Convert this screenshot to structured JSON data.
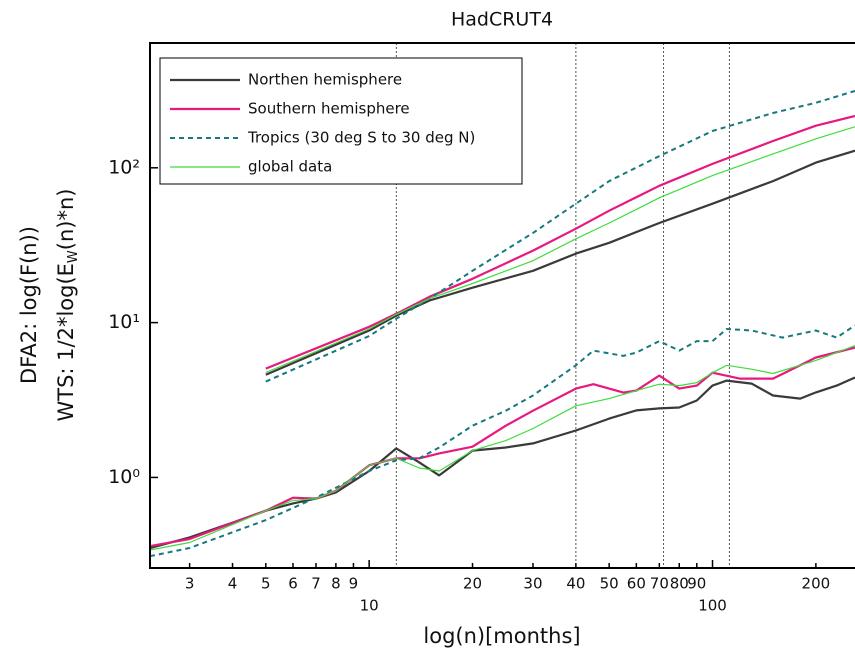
{
  "chart_data": {
    "type": "line",
    "title": "HadCRUT4",
    "xlabel": "log(n)[months]",
    "ylabel": [
      "DFA2: log(F(n))",
      "WTS: 1/2*log(E",
      "W",
      "(n)*n)"
    ],
    "log_x": true,
    "log_y": true,
    "xlim": [
      2.3,
      260
    ],
    "ylim": [
      0.26,
      640
    ],
    "xticks": [
      3,
      4,
      5,
      6,
      7,
      8,
      9,
      10,
      20,
      30,
      40,
      50,
      60,
      70,
      80,
      90,
      100,
      200
    ],
    "yticks": [
      {
        "value": 1,
        "label": "10⁰"
      },
      {
        "value": 10,
        "label": "10¹"
      },
      {
        "value": 100,
        "label": "10²"
      }
    ],
    "vlines": [
      12,
      40,
      72,
      112
    ],
    "series": [
      {
        "name": "Northen hemisphere",
        "color": "#3a3a3a",
        "dash": "none",
        "width": 2.2,
        "dfa": {
          "x": [
            5,
            10,
            12,
            15,
            20,
            30,
            40,
            50,
            70,
            100,
            150,
            200,
            260
          ],
          "values": [
            4.6,
            8.9,
            11.1,
            13.9,
            16.8,
            21.6,
            27.9,
            32.8,
            44,
            58.6,
            82,
            108,
            129
          ]
        },
        "wts": {
          "x": [
            2.3,
            3,
            4,
            5,
            6,
            7,
            8,
            10,
            12,
            14,
            16,
            20,
            25,
            30,
            40,
            50,
            60,
            70,
            80,
            90,
            100,
            110,
            130,
            150,
            180,
            200,
            230,
            260
          ],
          "values": [
            0.35,
            0.41,
            0.51,
            0.61,
            0.68,
            0.73,
            0.8,
            1.1,
            1.54,
            1.25,
            1.03,
            1.49,
            1.56,
            1.66,
            2.01,
            2.4,
            2.71,
            2.79,
            2.83,
            3.14,
            3.92,
            4.22,
            4.04,
            3.38,
            3.23,
            3.54,
            3.92,
            4.42
          ]
        }
      },
      {
        "name": "Southern hemisphere",
        "color": "#e8197e",
        "dash": "none",
        "width": 2.2,
        "dfa": {
          "x": [
            5,
            10,
            12,
            15,
            20,
            30,
            40,
            50,
            70,
            100,
            150,
            200,
            260
          ],
          "values": [
            5.05,
            9.4,
            11.4,
            14.7,
            19.2,
            29.2,
            40.4,
            52.8,
            76.5,
            106,
            149,
            187,
            216
          ]
        },
        "wts": {
          "x": [
            2.3,
            3,
            5,
            6,
            7,
            8,
            10,
            12,
            14,
            16,
            20,
            25,
            30,
            40,
            45,
            55,
            60,
            70,
            80,
            90,
            100,
            120,
            150,
            180,
            200,
            260
          ],
          "values": [
            0.36,
            0.4,
            0.61,
            0.74,
            0.73,
            0.82,
            1.2,
            1.33,
            1.33,
            1.43,
            1.58,
            2.16,
            2.7,
            3.75,
            4.0,
            3.53,
            3.64,
            4.55,
            3.75,
            3.92,
            4.75,
            4.35,
            4.35,
            5.3,
            5.95,
            6.9
          ]
        }
      },
      {
        "name": "Tropics (30 deg S to 30 deg N)",
        "color": "#16797e",
        "dash": "5,4",
        "width": 2,
        "dfa": {
          "x": [
            5,
            10,
            12,
            15,
            20,
            30,
            40,
            50,
            70,
            100,
            150,
            200,
            260
          ],
          "values": [
            4.16,
            8.2,
            10.6,
            14.3,
            21.6,
            38,
            58.6,
            82,
            119,
            173,
            226,
            263,
            314
          ]
        },
        "wts": {
          "x": [
            2.3,
            3,
            5,
            7,
            10,
            12,
            14,
            16,
            20,
            25,
            30,
            40,
            45,
            55,
            60,
            70,
            80,
            90,
            100,
            110,
            130,
            160,
            200,
            230,
            260
          ],
          "values": [
            0.31,
            0.35,
            0.53,
            0.74,
            1.1,
            1.29,
            1.33,
            1.56,
            2.16,
            2.7,
            3.38,
            5.3,
            6.6,
            6.1,
            6.4,
            7.6,
            6.6,
            7.6,
            7.6,
            9.1,
            8.9,
            8.0,
            8.9,
            8.0,
            9.6
          ]
        }
      },
      {
        "name": "global data",
        "color": "#3ddc3d",
        "dash": "none",
        "width": 1.2,
        "dfa": {
          "x": [
            5,
            10,
            12,
            15,
            20,
            30,
            40,
            50,
            70,
            100,
            150,
            200,
            260
          ],
          "values": [
            4.76,
            9.1,
            11.3,
            14.3,
            17.9,
            25.1,
            34.8,
            44,
            64,
            89,
            123,
            154,
            184
          ]
        },
        "wts": {
          "x": [
            2.3,
            3,
            5,
            6,
            7,
            8,
            10,
            12,
            14,
            16,
            20,
            25,
            30,
            40,
            50,
            60,
            70,
            80,
            90,
            100,
            110,
            130,
            150,
            200,
            260
          ],
          "values": [
            0.34,
            0.38,
            0.61,
            0.71,
            0.73,
            0.82,
            1.2,
            1.33,
            1.15,
            1.1,
            1.49,
            1.73,
            2.07,
            2.9,
            3.23,
            3.64,
            4.0,
            3.92,
            4.1,
            4.75,
            5.3,
            5.0,
            4.69,
            5.7,
            7.1
          ]
        }
      }
    ]
  }
}
